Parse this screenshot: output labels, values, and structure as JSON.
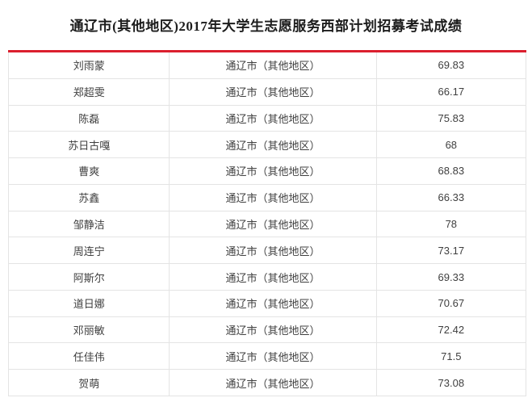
{
  "page": {
    "title": "通辽市(其他地区)2017年大学生志愿服务西部计划招募考试成绩"
  },
  "theme": {
    "accent_red": "#db1f2e",
    "border_gray": "#e4e4e4"
  },
  "table": {
    "rows": [
      {
        "name": "刘雨蒙",
        "region": "通辽市（其他地区）",
        "score": "69.83"
      },
      {
        "name": "郑超雯",
        "region": "通辽市（其他地区）",
        "score": "66.17"
      },
      {
        "name": "陈磊",
        "region": "通辽市（其他地区）",
        "score": "75.83"
      },
      {
        "name": "苏日古嘎",
        "region": "通辽市（其他地区）",
        "score": "68"
      },
      {
        "name": "曹爽",
        "region": "通辽市（其他地区）",
        "score": "68.83"
      },
      {
        "name": "苏鑫",
        "region": "通辽市（其他地区）",
        "score": "66.33"
      },
      {
        "name": "邹静洁",
        "region": "通辽市（其他地区）",
        "score": "78"
      },
      {
        "name": "周连宁",
        "region": "通辽市（其他地区）",
        "score": "73.17"
      },
      {
        "name": "阿斯尔",
        "region": "通辽市（其他地区）",
        "score": "69.33"
      },
      {
        "name": "道日娜",
        "region": "通辽市（其他地区）",
        "score": "70.67"
      },
      {
        "name": "邓丽敏",
        "region": "通辽市（其他地区）",
        "score": "72.42"
      },
      {
        "name": "任佳伟",
        "region": "通辽市（其他地区）",
        "score": "71.5"
      },
      {
        "name": "贺萌",
        "region": "通辽市（其他地区）",
        "score": "73.08"
      }
    ]
  }
}
